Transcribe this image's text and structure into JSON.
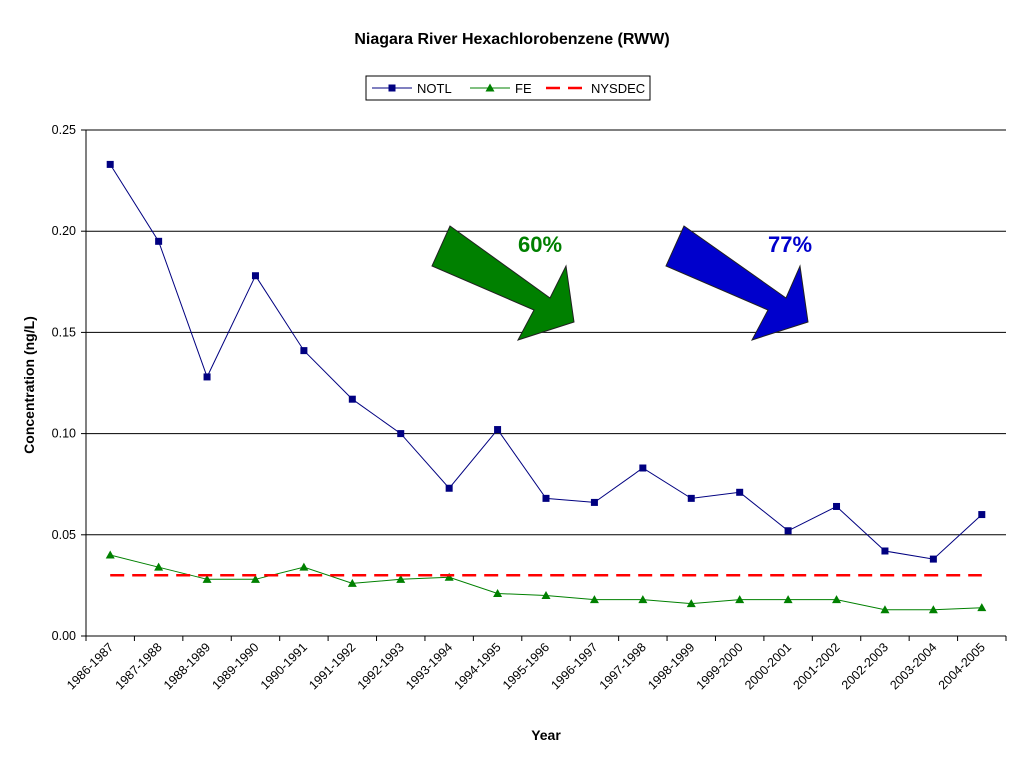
{
  "chart_data": {
    "type": "line",
    "title": "Niagara River Hexachlorobenzene (RWW)",
    "xlabel": "Year",
    "ylabel": "Concentration (ng/L)",
    "ylim": [
      0,
      0.25
    ],
    "yticks": [
      "0.00",
      "0.05",
      "0.10",
      "0.15",
      "0.20",
      "0.25"
    ],
    "grid": "horizontal major lines",
    "legend_position": "top-center",
    "categories": [
      "1986-1987",
      "1987-1988",
      "1988-1989",
      "1989-1990",
      "1990-1991",
      "1991-1992",
      "1992-1993",
      "1993-1994",
      "1994-1995",
      "1995-1996",
      "1996-1997",
      "1997-1998",
      "1998-1999",
      "1999-2000",
      "2000-2001",
      "2001-2002",
      "2002-2003",
      "2003-2004",
      "2004-2005"
    ],
    "series": [
      {
        "name": "NOTL",
        "color": "#000080",
        "marker": "square",
        "values": [
          0.233,
          0.195,
          0.128,
          0.178,
          0.141,
          0.117,
          0.1,
          0.073,
          0.102,
          0.068,
          0.066,
          0.083,
          0.068,
          0.071,
          0.052,
          0.064,
          0.042,
          0.038,
          0.06
        ]
      },
      {
        "name": "FE",
        "color": "#008000",
        "marker": "triangle",
        "values": [
          0.04,
          0.034,
          0.028,
          0.028,
          0.034,
          0.026,
          0.028,
          0.029,
          0.021,
          0.02,
          0.018,
          0.018,
          0.016,
          0.018,
          0.018,
          0.018,
          0.013,
          0.013,
          0.014
        ]
      },
      {
        "name": "NYSDEC",
        "color": "#ff0000",
        "style": "dashed",
        "values": [
          0.03,
          0.03,
          0.03,
          0.03,
          0.03,
          0.03,
          0.03,
          0.03,
          0.03,
          0.03,
          0.03,
          0.03,
          0.03,
          0.03,
          0.03,
          0.03,
          0.03,
          0.03,
          0.03
        ]
      }
    ],
    "annotations": [
      {
        "text": "60%",
        "color": "#008000",
        "shape": "down-right-arrow"
      },
      {
        "text": "77%",
        "color": "#0000cc",
        "shape": "down-right-arrow"
      }
    ]
  }
}
